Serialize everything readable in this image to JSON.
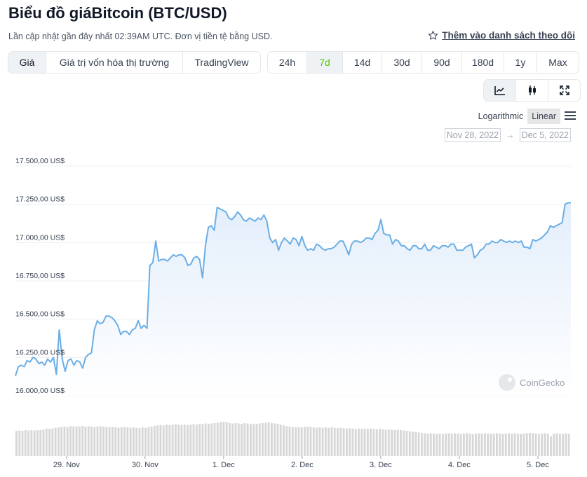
{
  "title": "Biểu đồ giáBitcoin (BTC/USD)",
  "subtitle": "Lần cập nhật gần đây nhất 02:39AM UTC. Đơn vị tiền tệ bằng USD.",
  "watchlist_label": "Thêm vào danh sách theo dõi",
  "view_tabs": [
    "Giá",
    "Giá trị vốn hóa thị trường",
    "TradingView"
  ],
  "range_tabs": [
    "24h",
    "7d",
    "14d",
    "30d",
    "90d",
    "180d",
    "1y",
    "Max"
  ],
  "active_range": "7d",
  "scale_options": [
    "Logarithmic",
    "Linear"
  ],
  "selected_scale": "Linear",
  "date_from": "Nov 28, 2022",
  "date_to": "Dec 5, 2022",
  "watermark": "CoinGecko",
  "colors": {
    "line": "#6aaee6",
    "area_top": "#e8f2fc",
    "volume": "#d7d7d7",
    "active_range": "#4bcc00"
  },
  "chart_data": {
    "type": "area",
    "ylim": [
      16000,
      17500
    ],
    "yticks": [
      17500,
      17250,
      17000,
      16750,
      16500,
      16250,
      16000
    ],
    "ytick_labels": [
      "17.500,00 US$",
      "17.250,00 US$",
      "17.000,00 US$",
      "16.750,00 US$",
      "16.500,00 US$",
      "16.250,00 US$",
      "16.000,00 US$"
    ],
    "xticks": [
      {
        "label": "29. Nov",
        "day": 1
      },
      {
        "label": "30. Nov",
        "day": 2
      },
      {
        "label": "1. Dec",
        "day": 3
      },
      {
        "label": "2. Dec",
        "day": 4
      },
      {
        "label": "3. Dec",
        "day": 5
      },
      {
        "label": "4. Dec",
        "day": 6
      },
      {
        "label": "5. Dec",
        "day": 7
      }
    ],
    "x_range_days": [
      0.35,
      7.42
    ],
    "series": [
      {
        "values": [
          16130,
          16190,
          16200,
          16190,
          16230,
          16220,
          16250,
          16240,
          16210,
          16220,
          16200,
          16240,
          16220,
          16250,
          16140,
          16430,
          16240,
          16160,
          16230,
          16240,
          16200,
          16230,
          16220,
          16180,
          16250,
          16270,
          16280,
          16430,
          16490,
          16470,
          16480,
          16520,
          16520,
          16510,
          16490,
          16460,
          16400,
          16420,
          16420,
          16400,
          16430,
          16440,
          16490,
          16440,
          16460,
          16440,
          16850,
          16870,
          17010,
          16880,
          16890,
          16890,
          16880,
          16900,
          16920,
          16910,
          16920,
          16920,
          16900,
          16850,
          16860,
          16900,
          16910,
          16890,
          16770,
          16980,
          17100,
          17110,
          17080,
          17230,
          17220,
          17210,
          17200,
          17160,
          17150,
          17170,
          17200,
          17180,
          17150,
          17140,
          17160,
          17150,
          17140,
          17160,
          17150,
          17180,
          17140,
          17030,
          17000,
          17020,
          16950,
          17000,
          17030,
          17010,
          16990,
          17030,
          17020,
          16980,
          17040,
          16980,
          16950,
          16960,
          16950,
          16990,
          16980,
          16960,
          16950,
          16960,
          16960,
          16970,
          16990,
          17010,
          17010,
          16970,
          16920,
          16990,
          17010,
          17010,
          17000,
          17010,
          17030,
          17030,
          17020,
          17060,
          17080,
          17150,
          17060,
          17050,
          17050,
          16990,
          17020,
          17010,
          16980,
          16980,
          16960,
          16950,
          16980,
          16980,
          16960,
          16960,
          16990,
          16950,
          16950,
          16980,
          16970,
          16960,
          16980,
          16980,
          16970,
          16990,
          16990,
          16950,
          16950,
          16950,
          16970,
          16980,
          16990,
          16900,
          16920,
          16950,
          16960,
          16990,
          16990,
          17010,
          17000,
          17000,
          17020,
          17010,
          17000,
          17010,
          17000,
          17010,
          17000,
          17010,
          16970,
          16970,
          16960,
          17020,
          17010,
          17020,
          17030,
          17050,
          17070,
          17110,
          17100,
          17110,
          17120,
          17130,
          17250,
          17260,
          17260
        ]
      }
    ],
    "volume": [
      0.64,
      0.65,
      0.64,
      0.66,
      0.65,
      0.66,
      0.65,
      0.66,
      0.66,
      0.67,
      0.7,
      0.69,
      0.7,
      0.72,
      0.73,
      0.74,
      0.75,
      0.74,
      0.76,
      0.75,
      0.76,
      0.75,
      0.77,
      0.75,
      0.76,
      0.75,
      0.74,
      0.75,
      0.76,
      0.75,
      0.74,
      0.73,
      0.74,
      0.73,
      0.72,
      0.73,
      0.74,
      0.73,
      0.72,
      0.73,
      0.72,
      0.71,
      0.73,
      0.72,
      0.74,
      0.75,
      0.77,
      0.78,
      0.79,
      0.78,
      0.8,
      0.79,
      0.8,
      0.81,
      0.8,
      0.79,
      0.8,
      0.79,
      0.8,
      0.81,
      0.8,
      0.82,
      0.81,
      0.83,
      0.82,
      0.83,
      0.84,
      0.85,
      0.86,
      0.87,
      0.86,
      0.84,
      0.83,
      0.84,
      0.83,
      0.82,
      0.84,
      0.83,
      0.82,
      0.81,
      0.82,
      0.83,
      0.84,
      0.85,
      0.86,
      0.84,
      0.83,
      0.82,
      0.8,
      0.78,
      0.76,
      0.75,
      0.74,
      0.73,
      0.74,
      0.73,
      0.74,
      0.75,
      0.74,
      0.73,
      0.72,
      0.73,
      0.72,
      0.73,
      0.72,
      0.73,
      0.72,
      0.71,
      0.72,
      0.71,
      0.7,
      0.71,
      0.7,
      0.69,
      0.7,
      0.69,
      0.7,
      0.69,
      0.7,
      0.69,
      0.68,
      0.69,
      0.68,
      0.67,
      0.68,
      0.67,
      0.66,
      0.67,
      0.66,
      0.65,
      0.64,
      0.63,
      0.62,
      0.61,
      0.6,
      0.59,
      0.58,
      0.57,
      0.58,
      0.57,
      0.56,
      0.57,
      0.56,
      0.57,
      0.58,
      0.57,
      0.58,
      0.57,
      0.56,
      0.57,
      0.58,
      0.57,
      0.56,
      0.57,
      0.58,
      0.57,
      0.58,
      0.57,
      0.56,
      0.57,
      0.58,
      0.57,
      0.56,
      0.57,
      0.58,
      0.57,
      0.58,
      0.57,
      0.56,
      0.57,
      0.58,
      0.59,
      0.58,
      0.57,
      0.56,
      0.57,
      0.58,
      0.57,
      0.5,
      0.57,
      0.58,
      0.57,
      0.56,
      0.58,
      0.57
    ]
  }
}
